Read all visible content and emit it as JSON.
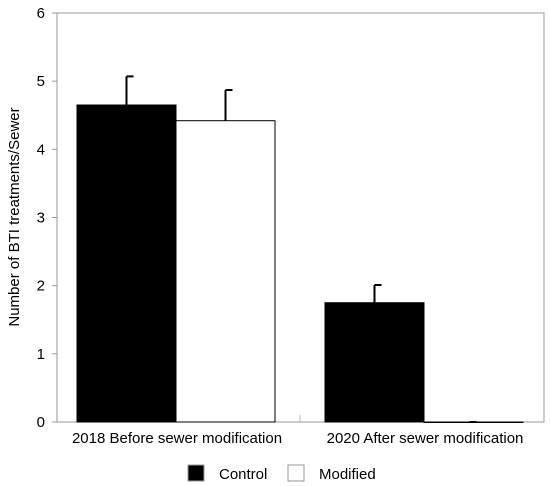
{
  "chart_data": {
    "type": "bar",
    "categories": [
      "2018 Before sewer modification",
      "2020 After sewer modification"
    ],
    "series": [
      {
        "name": "Control",
        "values": [
          4.65,
          1.75
        ],
        "errors": [
          0.42,
          0.26
        ],
        "color": "#000000"
      },
      {
        "name": "Modified",
        "values": [
          4.42,
          0.0
        ],
        "errors": [
          0.45,
          0.0
        ],
        "color": "#ffffff"
      }
    ],
    "title": "",
    "xlabel": "",
    "ylabel": "Number of BTI treatments/Sewer",
    "ylim": [
      0,
      6
    ],
    "yticks": [
      0,
      1,
      2,
      3,
      4,
      5,
      6
    ],
    "grid": false,
    "legend": "bottom-center"
  }
}
